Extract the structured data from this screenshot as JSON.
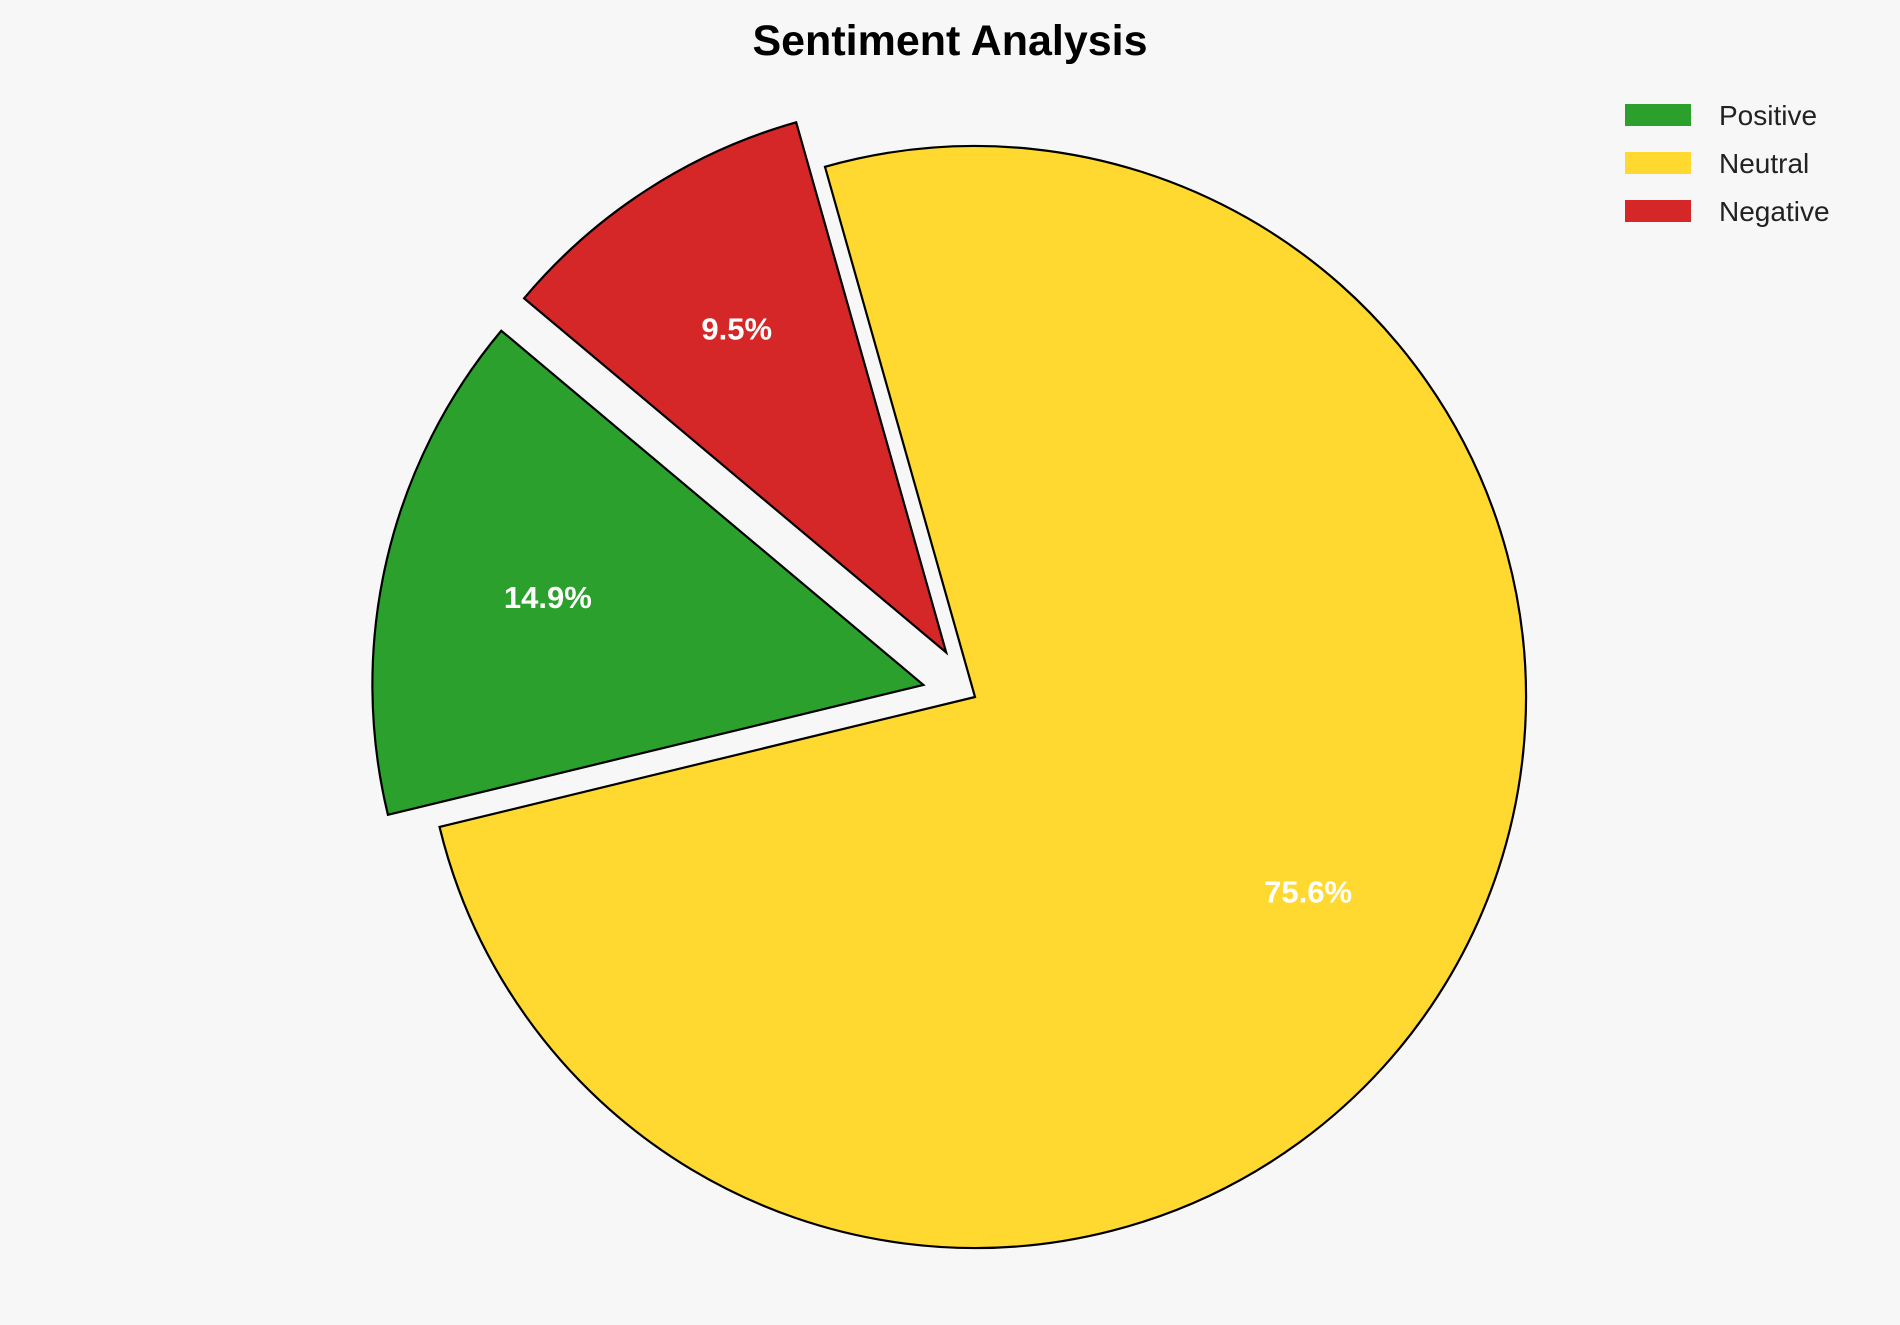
{
  "chart_data": {
    "type": "pie",
    "title": "Sentiment Analysis",
    "categories": [
      "Positive",
      "Neutral",
      "Negative"
    ],
    "values": [
      14.9,
      75.6,
      9.5
    ],
    "labels": [
      "14.9%",
      "75.6%",
      "9.5%"
    ],
    "colors": [
      "#2ca02c",
      "#ffd92f",
      "#d62728"
    ],
    "exploded": [
      true,
      false,
      true
    ],
    "legend_position": "top-right",
    "start_angle_deg": 140,
    "direction": "counterclockwise"
  }
}
